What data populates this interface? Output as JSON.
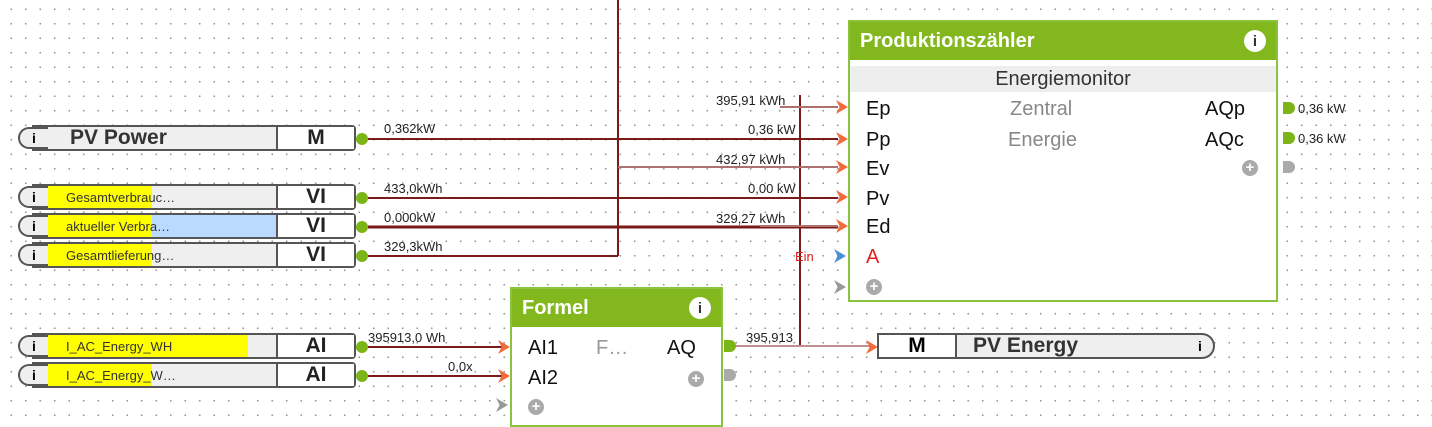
{
  "inputs": [
    {
      "label": "PV Power",
      "type": "M",
      "value": "0,362kW"
    },
    {
      "label": "Gesamtverbrauc…",
      "type": "VI",
      "value": "433,0kWh"
    },
    {
      "label": "aktueller Verbra…",
      "type": "VI",
      "value": "0,000kW"
    },
    {
      "label": "Gesamtlieferung…",
      "type": "VI",
      "value": "329,3kWh"
    },
    {
      "label": "I_AC_Energy_WH",
      "type": "AI",
      "value": "395913,0 Wh"
    },
    {
      "label": "I_AC_Energy_W…",
      "type": "AI",
      "value": "0,0x"
    }
  ],
  "energiemonitor": {
    "title": "Produktionszähler",
    "subtitle": "Energiemonitor",
    "desc1": "Zentral",
    "desc2": "Energie",
    "inputs": [
      {
        "name": "Ep",
        "value": "395,91 kWh"
      },
      {
        "name": "Pp",
        "value": "0,36 kW"
      },
      {
        "name": "Ev",
        "value": "432,97 kWh"
      },
      {
        "name": "Pv",
        "value": "0,00 kW"
      },
      {
        "name": "Ed",
        "value": "329,27 kWh"
      },
      {
        "name": "A",
        "value": "Ein"
      }
    ],
    "outputs": [
      {
        "name": "AQp",
        "value": "0,36 kW"
      },
      {
        "name": "AQc",
        "value": "0,36 kW"
      }
    ]
  },
  "formel": {
    "title": "Formel",
    "inputs": [
      "AI1",
      "AI2"
    ],
    "mid": "F…",
    "output": "AQ",
    "output_value": "395,913"
  },
  "output_block": {
    "type": "M",
    "label": "PV Energy"
  },
  "colors": {
    "header": "#82b81e",
    "wire": "#7a1010",
    "highlight": "#ffff00",
    "selection": "#b9dbff"
  }
}
